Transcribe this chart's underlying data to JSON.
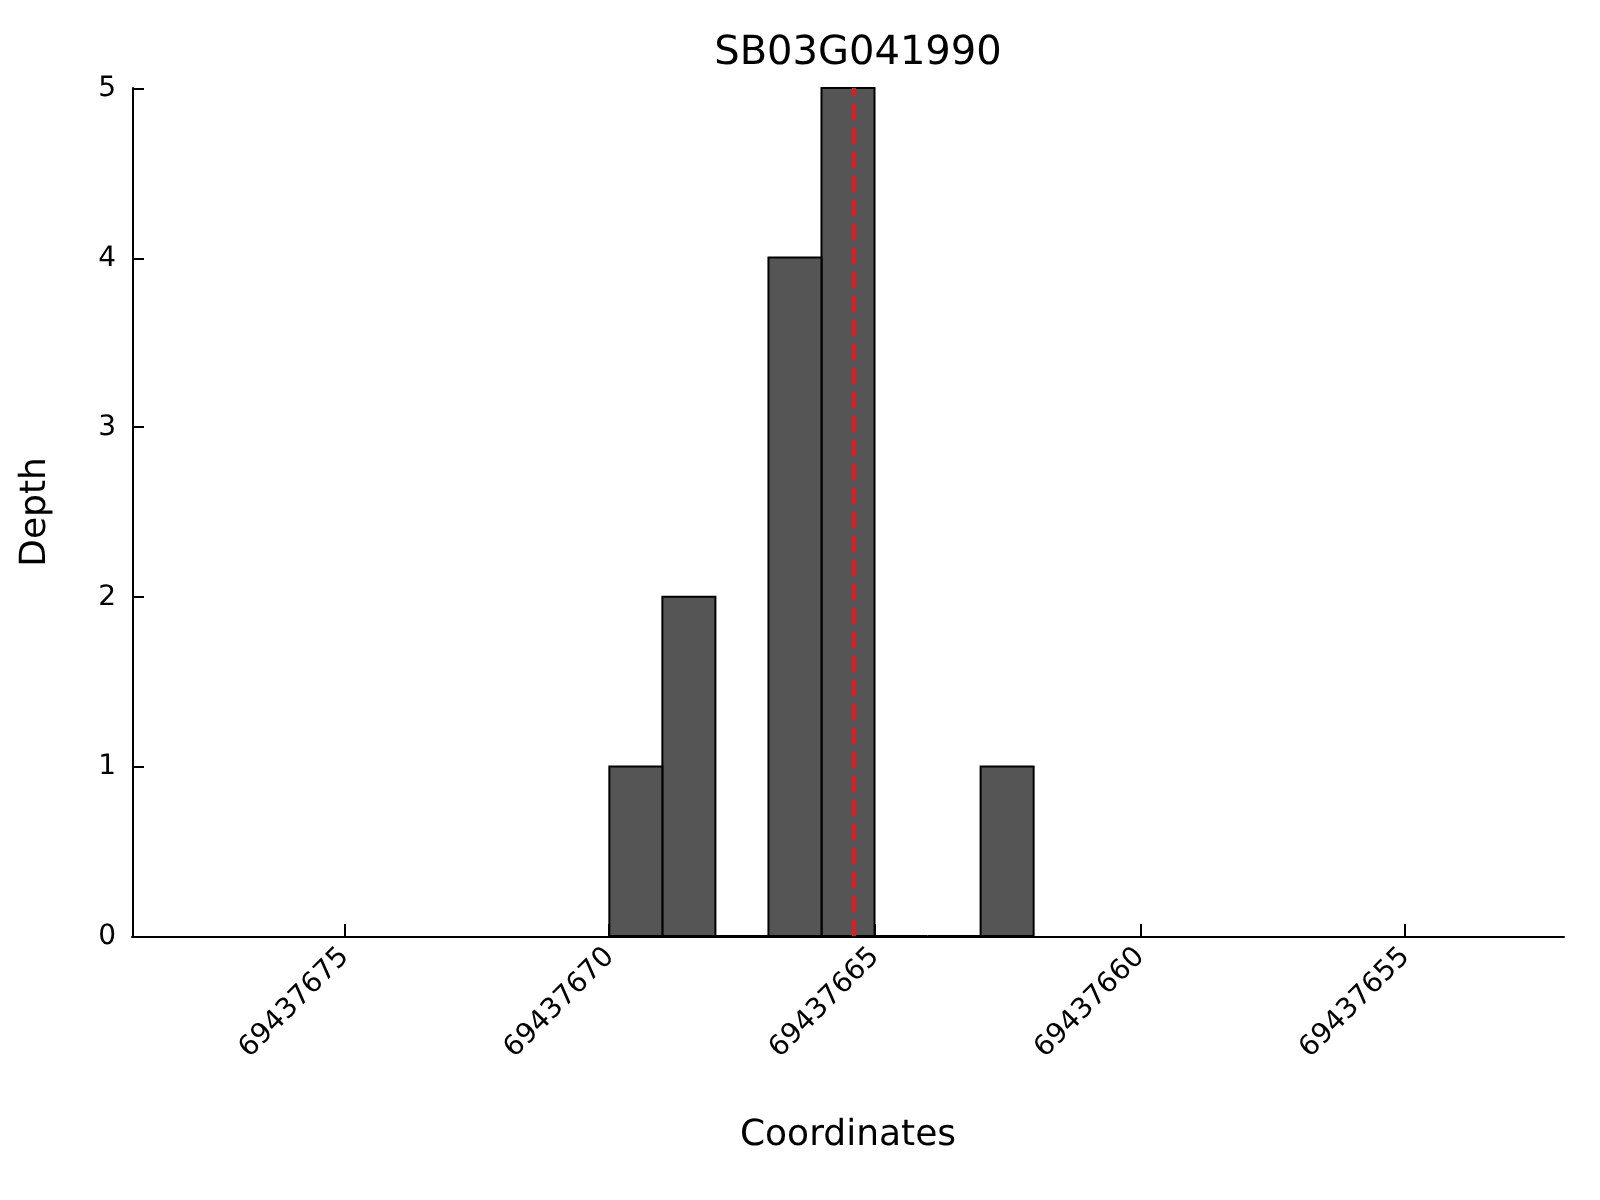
{
  "chart_data": {
    "type": "histogram",
    "title": "SB03G041990",
    "xlabel": "Coordinates",
    "ylabel": "Depth",
    "bins": [
      69437662,
      69437663,
      69437664,
      69437665,
      69437666,
      69437667,
      69437668,
      69437669,
      69437670
    ],
    "values": [
      1,
      0,
      0,
      5,
      4,
      0,
      2,
      1
    ],
    "color": "#555555",
    "xlim": [
      69437679,
      69437652
    ],
    "xticks": [
      69437675,
      69437670,
      69437665,
      69437660,
      69437655
    ],
    "ylim": [
      0,
      5
    ],
    "yticks": [
      0,
      1,
      2,
      3,
      4,
      5
    ],
    "ref_lines": [
      {
        "axis": "x",
        "value": 69437665.4,
        "color": "#e41a1c",
        "line_style": "dashed"
      }
    ],
    "grid": false
  }
}
